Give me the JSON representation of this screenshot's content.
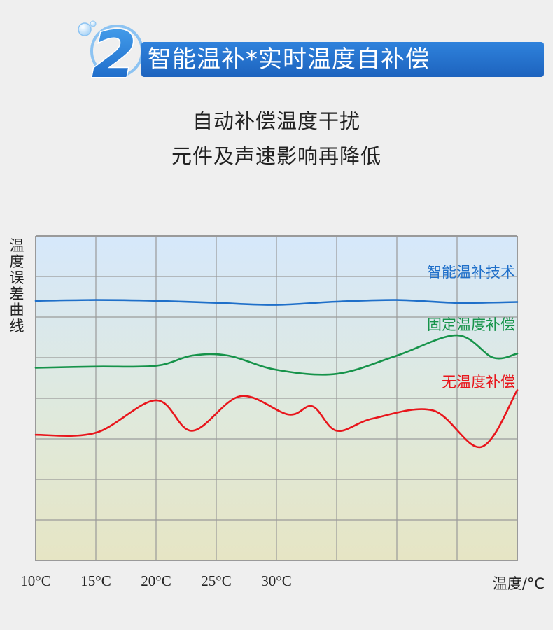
{
  "header": {
    "badge_number": "2",
    "title": "智能温补*实时温度自补偿"
  },
  "subtitle": {
    "line1": "自动补偿温度干扰",
    "line2": "元件及声速影响再降低"
  },
  "colors": {
    "accent": "#1d6bc8",
    "series_smart": "#1f6fc9",
    "series_fixed": "#16934a",
    "series_none": "#e8161c",
    "grid": "#9a9a9a"
  },
  "chart_data": {
    "type": "line",
    "ylabel": "温度误差曲线",
    "xunit_label": "温度/°C",
    "x_tick_labels": [
      "10°C",
      "15°C",
      "20°C",
      "25°C",
      "30°C"
    ],
    "xlim": [
      10,
      50
    ],
    "ylim": [
      0,
      8
    ],
    "grid": true,
    "legend_placement": "right",
    "series": [
      {
        "name": "智能温补技术",
        "color": "#1f6fc9",
        "x": [
          10,
          15,
          20,
          25,
          30,
          35,
          40,
          45,
          50
        ],
        "y": [
          6.4,
          6.42,
          6.4,
          6.35,
          6.3,
          6.38,
          6.42,
          6.35,
          6.37
        ]
      },
      {
        "name": "固定温度补偿",
        "color": "#16934a",
        "x": [
          10,
          15,
          20,
          23,
          26,
          30,
          35,
          40,
          45,
          48,
          50
        ],
        "y": [
          4.75,
          4.78,
          4.8,
          5.05,
          5.05,
          4.7,
          4.6,
          5.05,
          5.55,
          5.0,
          5.1
        ]
      },
      {
        "name": "无温度补偿",
        "color": "#e8161c",
        "x": [
          10,
          15,
          20,
          23,
          27,
          31,
          33,
          35,
          38,
          43,
          47,
          50
        ],
        "y": [
          3.1,
          3.15,
          3.95,
          3.2,
          4.05,
          3.6,
          3.8,
          3.2,
          3.5,
          3.7,
          2.8,
          4.2
        ]
      }
    ]
  }
}
